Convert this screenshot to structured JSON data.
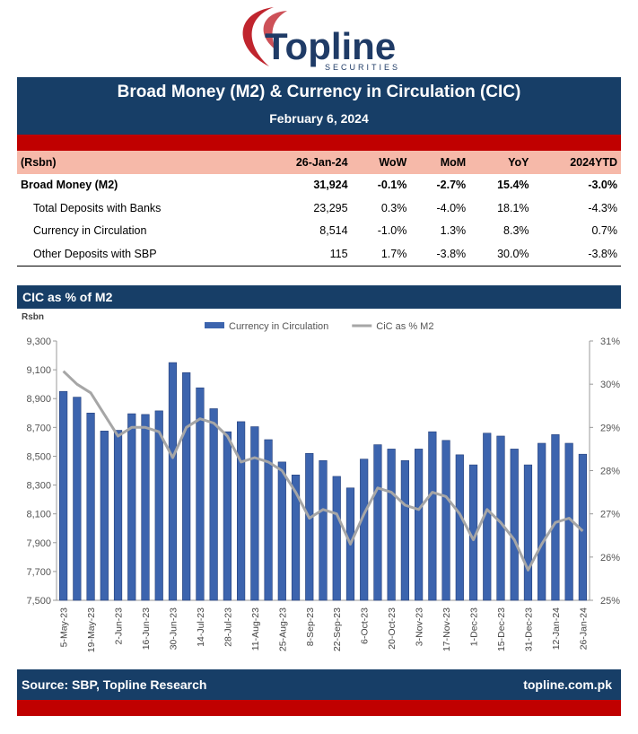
{
  "logo": {
    "name": "Topline",
    "tagline": "SECURITIES"
  },
  "header": {
    "title": "Broad Money (M2) & Currency in Circulation (CIC)",
    "date": "February 6, 2024"
  },
  "table": {
    "columns": [
      "(Rsbn)",
      "26-Jan-24",
      "WoW",
      "MoM",
      "YoY",
      "2024YTD"
    ],
    "rows": [
      [
        "Broad Money (M2)",
        "31,924",
        "-0.1%",
        "-2.7%",
        "15.4%",
        "-3.0%"
      ],
      [
        "Total Deposits with Banks",
        "23,295",
        "0.3%",
        "-4.0%",
        "18.1%",
        "-4.3%"
      ],
      [
        "Currency in Circulation",
        "8,514",
        "-1.0%",
        "1.3%",
        "8.3%",
        "0.7%"
      ],
      [
        "Other Deposits with SBP",
        "115",
        "1.7%",
        "-3.8%",
        "30.0%",
        "-3.8%"
      ]
    ]
  },
  "chart_data": {
    "type": "combo",
    "title": "CIC as % of M2",
    "y_label": "Rsbn",
    "categories": [
      "5-May-23",
      null,
      "19-May-23",
      null,
      "2-Jun-23",
      null,
      "16-Jun-23",
      null,
      "30-Jun-23",
      null,
      "14-Jul-23",
      null,
      "28-Jul-23",
      null,
      "11-Aug-23",
      null,
      "25-Aug-23",
      null,
      "8-Sep-23",
      null,
      "22-Sep-23",
      null,
      "6-Oct-23",
      null,
      "20-Oct-23",
      null,
      "3-Nov-23",
      null,
      "17-Nov-23",
      null,
      "1-Dec-23",
      null,
      "15-Dec-23",
      null,
      "31-Dec-23",
      null,
      "12-Jan-24",
      null,
      "26-Jan-24"
    ],
    "series": [
      {
        "name": "Currency in Circulation",
        "type": "bar",
        "color": "#3c64ae",
        "values": [
          8950,
          8910,
          8800,
          8675,
          8680,
          8795,
          8790,
          8815,
          9150,
          9080,
          8975,
          8830,
          8670,
          8740,
          8705,
          8615,
          8460,
          8370,
          8520,
          8470,
          8360,
          8280,
          8480,
          8580,
          8550,
          8470,
          8550,
          8670,
          8610,
          8510,
          8440,
          8660,
          8640,
          8550,
          8440,
          8590,
          8650,
          8590,
          8514
        ]
      },
      {
        "name": "CiC as % M2",
        "type": "line",
        "color": "#a6a6a6",
        "axis": "y2",
        "values": [
          30.3,
          30.0,
          29.8,
          29.3,
          28.8,
          29.0,
          29.0,
          28.9,
          28.3,
          29.0,
          29.2,
          29.1,
          28.8,
          28.2,
          28.3,
          28.2,
          28.0,
          27.5,
          26.9,
          27.1,
          27.0,
          26.3,
          27.0,
          27.6,
          27.5,
          27.2,
          27.1,
          27.5,
          27.4,
          27.0,
          26.4,
          27.1,
          26.8,
          26.4,
          25.7,
          26.3,
          26.8,
          26.9,
          26.6
        ]
      }
    ],
    "ylim": [
      7500,
      9300
    ],
    "yticks": [
      {
        "value": 7500,
        "label": "7,500"
      },
      {
        "value": 7700,
        "label": "7,700"
      },
      {
        "value": 7900,
        "label": "7,900"
      },
      {
        "value": 8100,
        "label": "8,100"
      },
      {
        "value": 8300,
        "label": "8,300"
      },
      {
        "value": 8500,
        "label": "8,500"
      },
      {
        "value": 8700,
        "label": "8,700"
      },
      {
        "value": 8900,
        "label": "8,900"
      },
      {
        "value": 9100,
        "label": "9,100"
      },
      {
        "value": 9300,
        "label": "9,300"
      }
    ],
    "y2lim": [
      25,
      31
    ],
    "y2ticks": [
      {
        "value": 25,
        "label": "25%"
      },
      {
        "value": 26,
        "label": "26%"
      },
      {
        "value": 27,
        "label": "27%"
      },
      {
        "value": 28,
        "label": "28%"
      },
      {
        "value": 29,
        "label": "29%"
      },
      {
        "value": 30,
        "label": "30%"
      },
      {
        "value": 31,
        "label": "31%"
      }
    ],
    "legend": "top"
  },
  "footer": {
    "source": "Source: SBP, Topline Research",
    "website": "topline.com.pk"
  }
}
